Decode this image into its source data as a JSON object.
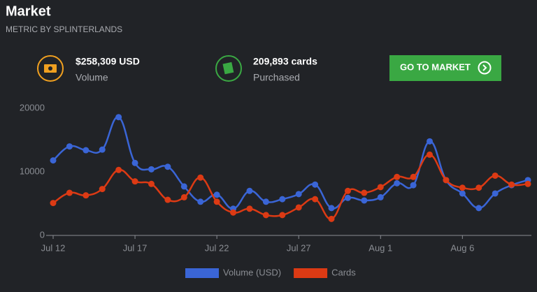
{
  "header": {
    "title": "Market",
    "subtitle": "METRIC BY SPLINTERLANDS"
  },
  "stats": [
    {
      "value": "$258,309 USD",
      "label": "Volume"
    },
    {
      "value": "209,893 cards",
      "label": "Purchased"
    }
  ],
  "button": "GO TO MARKET",
  "chart_data": {
    "type": "line",
    "categories": [
      "Jul 12",
      null,
      null,
      null,
      null,
      "Jul 17",
      null,
      null,
      null,
      null,
      "Jul 22",
      null,
      null,
      null,
      null,
      "Jul 27",
      null,
      null,
      null,
      null,
      "Aug 1",
      null,
      null,
      null,
      null,
      "Aug 6",
      null,
      null,
      null,
      null
    ],
    "series": [
      {
        "name": "Volume (USD)",
        "color": "#3a65d6",
        "values": [
          11800,
          14000,
          13400,
          13500,
          18600,
          11400,
          10400,
          10800,
          7700,
          5300,
          6400,
          4200,
          7000,
          5300,
          5700,
          6500,
          8000,
          4300,
          5900,
          5500,
          6000,
          8200,
          7900,
          14800,
          8700,
          6600,
          4300,
          6600,
          7900,
          8700
        ]
      },
      {
        "name": "Cards",
        "color": "#dc3a14",
        "values": [
          5100,
          6700,
          6300,
          7300,
          10300,
          8500,
          8100,
          5600,
          6000,
          9100,
          5300,
          3600,
          4200,
          3200,
          3200,
          4400,
          5700,
          2600,
          7000,
          6700,
          7600,
          9200,
          9200,
          12700,
          8700,
          7500,
          7500,
          9400,
          8000,
          8100
        ]
      }
    ],
    "ylim": [
      0,
      20000
    ],
    "yticks": [
      0,
      10000,
      20000
    ],
    "grid": false,
    "legend": "bottom"
  }
}
